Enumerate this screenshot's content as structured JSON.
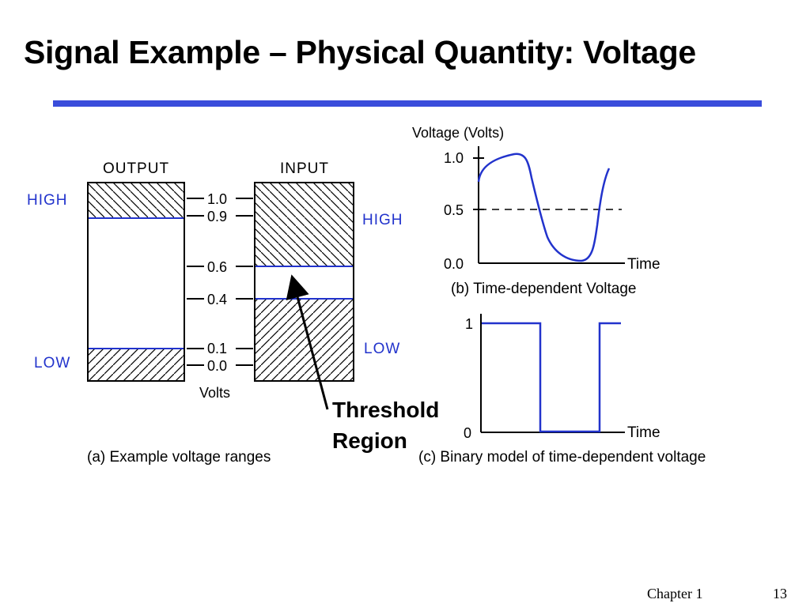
{
  "slide": {
    "title": "Signal Example – Physical Quantity: Voltage",
    "footer_chapter": "Chapter 1",
    "footer_page": "13",
    "accent_color": "#3a4ddb"
  },
  "panel_a": {
    "output_label": "OUTPUT",
    "input_label": "INPUT",
    "output_high": "HIGH",
    "output_low": "LOW",
    "input_high": "HIGH",
    "input_low": "LOW",
    "ticks": [
      "1.0",
      "0.9",
      "0.6",
      "0.4",
      "0.1",
      "0.0"
    ],
    "units": "Volts",
    "caption": "(a) Example voltage ranges",
    "annotation_line1": "Threshold",
    "annotation_line2": "Region"
  },
  "panel_b": {
    "ylabel": "Voltage (Volts)",
    "yticks": [
      "1.0",
      "0.5",
      "0.0"
    ],
    "xlabel": "Time",
    "caption": "(b) Time-dependent Voltage"
  },
  "panel_c": {
    "yticks": [
      "1",
      "0"
    ],
    "xlabel": "Time",
    "caption": "(c) Binary model of time-dependent voltage"
  }
}
